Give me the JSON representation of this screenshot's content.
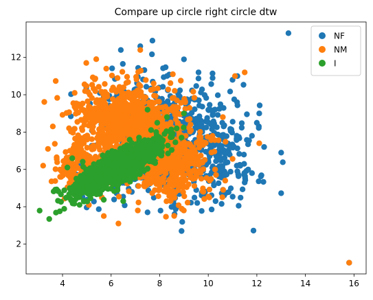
{
  "chart_data": {
    "type": "scatter",
    "title": "Compare up circle right circle dtw",
    "xlabel": "",
    "ylabel": "",
    "xlim": [
      2.5,
      16.5
    ],
    "ylim": [
      0.4,
      13.9
    ],
    "xticks": [
      4,
      6,
      8,
      10,
      12,
      14,
      16
    ],
    "yticks": [
      2,
      4,
      6,
      8,
      10,
      12
    ],
    "grid": false,
    "legend_position": "top-right",
    "series": [
      {
        "name": "NF",
        "color": "#1f77b4",
        "clusters": [
          {
            "center": [
              8.0,
              7.5
            ],
            "spread": [
              1.4,
              1.5
            ],
            "count": 900
          },
          {
            "center": [
              10.5,
              6.5
            ],
            "spread": [
              0.8,
              1.3
            ],
            "count": 120
          }
        ],
        "points": [
          [
            13.3,
            13.3
          ],
          [
            15.8,
            1.0
          ],
          [
            8.9,
            2.7
          ],
          [
            7.7,
            12.9
          ],
          [
            6.4,
            12.4
          ],
          [
            7.2,
            12.6
          ],
          [
            9.0,
            11.9
          ],
          [
            13.0,
            6.9
          ],
          [
            12.1,
            9.0
          ],
          [
            12.3,
            7.2
          ],
          [
            11.8,
            5.8
          ],
          [
            11.5,
            5.3
          ],
          [
            10.3,
            4.3
          ],
          [
            7.5,
            3.7
          ],
          [
            8.7,
            4.0
          ],
          [
            11.2,
            11.0
          ],
          [
            11.0,
            10.8
          ],
          [
            9.6,
            11.2
          ],
          [
            12.0,
            8.5
          ],
          [
            11.8,
            7.8
          ]
        ]
      },
      {
        "name": "NM",
        "color": "#ff7f0e",
        "clusters": [
          {
            "center": [
              6.7,
              8.6
            ],
            "spread": [
              1.1,
              0.95
            ],
            "count": 800
          },
          {
            "center": [
              8.5,
              6.4
            ],
            "spread": [
              0.8,
              0.95
            ],
            "count": 550
          },
          {
            "center": [
              4.8,
              6.2
            ],
            "spread": [
              0.55,
              0.75
            ],
            "count": 160
          }
        ],
        "points": [
          [
            15.8,
            1.0
          ],
          [
            7.2,
            12.4
          ],
          [
            6.3,
            3.1
          ],
          [
            3.2,
            6.2
          ],
          [
            3.4,
            7.1
          ],
          [
            3.6,
            8.3
          ],
          [
            4.5,
            10.1
          ],
          [
            5.8,
            11.4
          ],
          [
            11.5,
            11.2
          ],
          [
            11.1,
            11.0
          ],
          [
            12.1,
            7.4
          ],
          [
            10.7,
            5.4
          ],
          [
            10.6,
            8.8
          ],
          [
            5.7,
            3.5
          ],
          [
            7.1,
            3.8
          ],
          [
            9.8,
            4.8
          ],
          [
            4.2,
            4.5
          ],
          [
            3.9,
            5.6
          ]
        ]
      },
      {
        "name": "I",
        "color": "#2ca02c",
        "clusters": [
          {
            "center": [
              6.3,
              6.1
            ],
            "spread": [
              0.95,
              0.8
            ],
            "correlation": 0.85,
            "count": 950
          }
        ],
        "points": [
          [
            7.5,
            9.2
          ],
          [
            9.0,
            9.0
          ],
          [
            8.3,
            8.8
          ],
          [
            8.7,
            8.2
          ],
          [
            8.9,
            7.7
          ],
          [
            4.2,
            6.1
          ],
          [
            4.4,
            6.6
          ],
          [
            4.7,
            4.1
          ],
          [
            4.4,
            4.8
          ],
          [
            6.5,
            4.3
          ],
          [
            7.9,
            8.5
          ],
          [
            8.2,
            7.9
          ]
        ]
      }
    ]
  }
}
